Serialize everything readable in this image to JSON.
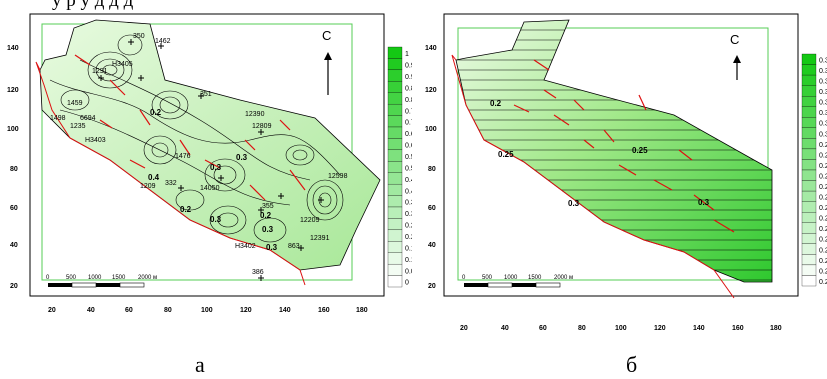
{
  "header_fragment": "у  р         у  д                                  д                д",
  "panels": [
    {
      "id": "a",
      "caption": "а",
      "north_label": "С",
      "scale_labels": [
        "0",
        "500",
        "1000",
        "1500",
        "2000 м"
      ],
      "x_ticks": [
        "20",
        "40",
        "60",
        "80",
        "100",
        "120",
        "140",
        "160",
        "180"
      ],
      "y_ticks": [
        "20",
        "40",
        "60",
        "80",
        "100",
        "120",
        "140"
      ],
      "colorbar_ticks": [
        "1",
        "0.95",
        "0.9",
        "0.85",
        "0.8",
        "0.75",
        "0.7",
        "0.65",
        "0.6",
        "0.55",
        "0.5",
        "0.45",
        "0.4",
        "0.35",
        "0.3",
        "0.25",
        "0.2",
        "0.15",
        "0.1",
        "0.05",
        "0"
      ],
      "contour_labels": [
        "0.2",
        "0.3",
        "0.3",
        "0.4",
        "0.2",
        "0.3",
        "0.2",
        "0.3",
        "0.3"
      ],
      "point_labels": [
        "350",
        "1462",
        "1291",
        "H3405",
        "1459",
        "1498",
        "6694",
        "1235",
        "H3403",
        "1476",
        "351",
        "12390",
        "12809",
        "1209",
        "332",
        "14050",
        "12598",
        "12391",
        "355",
        "H3402",
        "863",
        "12209",
        "386"
      ]
    },
    {
      "id": "b",
      "caption": "б",
      "north_label": "С",
      "scale_labels": [
        "0",
        "500",
        "1000",
        "1500",
        "2000 м"
      ],
      "x_ticks": [
        "20",
        "40",
        "60",
        "80",
        "100",
        "120",
        "140",
        "160",
        "180"
      ],
      "y_ticks": [
        "20",
        "40",
        "60",
        "80",
        "100",
        "120",
        "140"
      ],
      "colorbar_ticks": [
        "0.3",
        "0.3",
        "0.3",
        "0.3",
        "0.3",
        "0.3",
        "0.3",
        "0.3",
        "0.2",
        "0.2",
        "0.2",
        "0.2",
        "0.2",
        "0.2",
        "0.2",
        "0.2",
        "0.2",
        "0.2",
        "0.2",
        "0.2",
        "0.2",
        "0.2"
      ],
      "contour_labels": [
        "0.2",
        "0.25",
        "0.25",
        "0.3",
        "0.3"
      ]
    }
  ]
}
